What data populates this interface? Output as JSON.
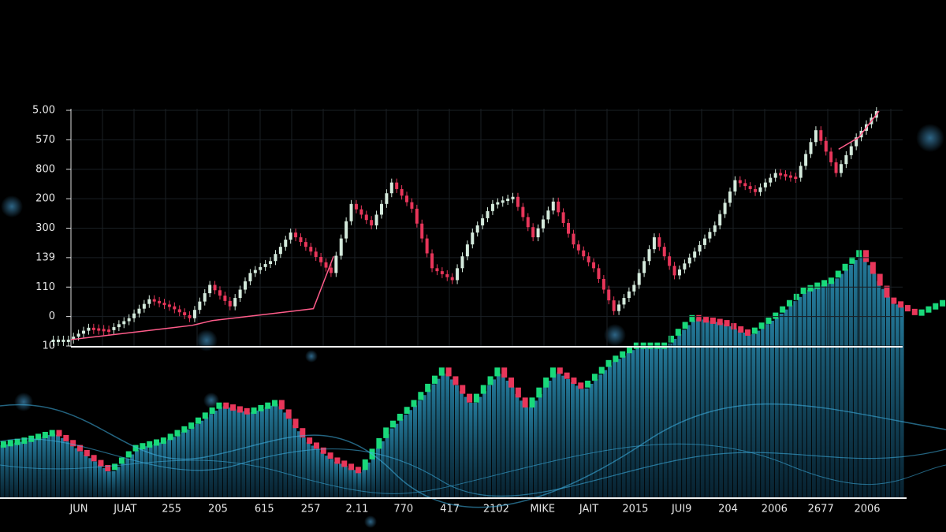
{
  "chart_data": [
    {
      "type": "candlestick",
      "y_labels": [
        "5.00",
        "570",
        "800",
        "200",
        "300",
        "139",
        "110",
        "0",
        "10"
      ],
      "ylim": [
        0,
        100
      ],
      "values": [
        3,
        8,
        7,
        12,
        20,
        17,
        12,
        26,
        17,
        31,
        36,
        48,
        40,
        31,
        60,
        51,
        69,
        58,
        33,
        28,
        48,
        60,
        63,
        46,
        61,
        43,
        33,
        15,
        26,
        46,
        30,
        40,
        51,
        70,
        65,
        73,
        71,
        91,
        73,
        88,
        99
      ],
      "ma": [
        3,
        4,
        5,
        6,
        7,
        8,
        9,
        11,
        12,
        13,
        14,
        15,
        16,
        38,
        null,
        null,
        null,
        null,
        null,
        null,
        null,
        null,
        null,
        null,
        null,
        null,
        null,
        null,
        null,
        null,
        null,
        null,
        null,
        null,
        null,
        null,
        null,
        null,
        83,
        88,
        99
      ],
      "up_color": "#d4eadc",
      "down_color": "#e8365a",
      "ma_color": "#ff5c8a"
    },
    {
      "type": "bar",
      "x_labels": [
        "JUN",
        "JUAT",
        "255",
        "205",
        "615",
        "257",
        "2.11",
        "770",
        "417",
        "2102",
        "MIKE",
        "JAIT",
        "2015",
        "JUI9",
        "204",
        "2006",
        "2677",
        "2006"
      ],
      "ylim": [
        0,
        100
      ],
      "values": [
        21,
        23,
        26,
        18,
        10,
        20,
        23,
        29,
        37,
        34,
        38,
        23,
        15,
        10,
        27,
        38,
        51,
        37,
        51,
        35,
        51,
        43,
        54,
        61,
        61,
        72,
        70,
        65,
        73,
        83,
        87,
        98,
        79,
        73,
        78
      ],
      "bar_color": "#1d6f8e",
      "up_color": "#19d97a",
      "down_color": "#e8365a"
    }
  ]
}
